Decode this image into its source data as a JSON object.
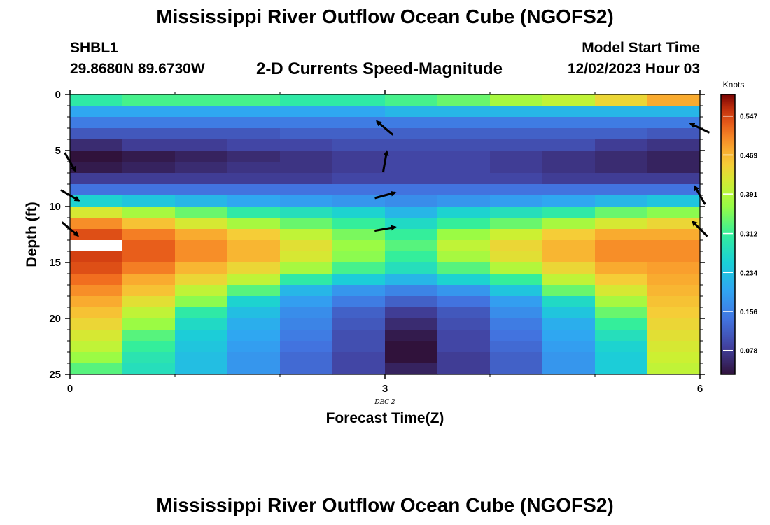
{
  "header": {
    "title": "Mississippi River Outflow Ocean Cube (NGOFS2)",
    "station_id": "SHBL1",
    "coords": "29.8680N  89.6730W",
    "subtitle": "2-D Currents Speed-Magnitude",
    "start_label": "Model Start Time",
    "start_value": "12/02/2023 Hour 03"
  },
  "footer": {
    "title": "Mississippi River Outflow Ocean Cube (NGOFS2)"
  },
  "chart_data": {
    "type": "heatmap",
    "xlabel": "Forecast Time(Z)",
    "ylabel": "Depth (ft)",
    "x_date_label": "DEC 2",
    "xlim": [
      0,
      6
    ],
    "ylim": [
      0,
      25
    ],
    "x_ticks": [
      0,
      3,
      6
    ],
    "y_ticks": [
      0,
      5,
      10,
      15,
      20,
      25
    ],
    "colorbar": {
      "unit": "Knots",
      "ticks": [
        0.078,
        0.156,
        0.234,
        0.312,
        0.391,
        0.469,
        0.547
      ],
      "range": [
        0.03,
        0.59
      ]
    },
    "x_centers": [
      0.25,
      0.75,
      1.25,
      1.75,
      2.25,
      2.75,
      3.25,
      3.75,
      4.25,
      4.75,
      5.25,
      5.75
    ],
    "depth_levels": [
      0.5,
      1.5,
      2.5,
      3.5,
      4.5,
      5.5,
      6.5,
      7.5,
      8.5,
      9.5,
      10.5,
      11.5,
      12.5,
      13.5,
      14.5,
      15.5,
      16.5,
      17.5,
      18.5,
      19.5,
      20.5,
      21.5,
      22.5,
      23.5,
      24.5
    ],
    "speed_knots": [
      [
        0.3,
        0.32,
        0.32,
        0.32,
        0.3,
        0.3,
        0.32,
        0.34,
        0.38,
        0.4,
        0.44,
        0.48
      ],
      [
        0.2,
        0.2,
        0.2,
        0.2,
        0.2,
        0.2,
        0.22,
        0.22,
        0.22,
        0.22,
        0.22,
        0.22
      ],
      [
        0.15,
        0.15,
        0.15,
        0.15,
        0.15,
        0.15,
        0.15,
        0.15,
        0.15,
        0.15,
        0.15,
        0.15
      ],
      [
        0.11,
        0.11,
        0.11,
        0.11,
        0.12,
        0.12,
        0.12,
        0.12,
        0.12,
        0.12,
        0.12,
        0.11
      ],
      [
        0.06,
        0.08,
        0.08,
        0.09,
        0.09,
        0.1,
        0.1,
        0.1,
        0.1,
        0.1,
        0.08,
        0.07
      ],
      [
        0.03,
        0.04,
        0.05,
        0.06,
        0.07,
        0.08,
        0.09,
        0.09,
        0.08,
        0.07,
        0.06,
        0.05
      ],
      [
        0.04,
        0.05,
        0.06,
        0.07,
        0.07,
        0.08,
        0.09,
        0.09,
        0.08,
        0.07,
        0.06,
        0.05
      ],
      [
        0.08,
        0.08,
        0.08,
        0.08,
        0.08,
        0.09,
        0.09,
        0.09,
        0.09,
        0.08,
        0.08,
        0.08
      ],
      [
        0.14,
        0.14,
        0.14,
        0.14,
        0.14,
        0.14,
        0.14,
        0.14,
        0.14,
        0.14,
        0.14,
        0.14
      ],
      [
        0.26,
        0.24,
        0.22,
        0.2,
        0.19,
        0.18,
        0.17,
        0.18,
        0.19,
        0.2,
        0.22,
        0.24
      ],
      [
        0.42,
        0.38,
        0.34,
        0.3,
        0.28,
        0.26,
        0.22,
        0.26,
        0.28,
        0.3,
        0.34,
        0.36
      ],
      [
        0.5,
        0.46,
        0.42,
        0.38,
        0.34,
        0.31,
        0.27,
        0.31,
        0.34,
        0.38,
        0.42,
        0.44
      ],
      [
        0.54,
        0.51,
        0.48,
        0.45,
        0.4,
        0.35,
        0.31,
        0.37,
        0.41,
        0.45,
        0.48,
        0.48
      ],
      [
        0.55,
        0.53,
        0.5,
        0.47,
        0.43,
        0.37,
        0.33,
        0.4,
        0.44,
        0.47,
        0.5,
        0.5
      ],
      [
        0.55,
        0.53,
        0.5,
        0.47,
        0.42,
        0.36,
        0.31,
        0.38,
        0.43,
        0.47,
        0.5,
        0.5
      ],
      [
        0.54,
        0.51,
        0.47,
        0.44,
        0.38,
        0.32,
        0.28,
        0.33,
        0.39,
        0.44,
        0.48,
        0.49
      ],
      [
        0.52,
        0.48,
        0.44,
        0.4,
        0.3,
        0.25,
        0.22,
        0.26,
        0.31,
        0.4,
        0.45,
        0.48
      ],
      [
        0.5,
        0.46,
        0.4,
        0.33,
        0.22,
        0.18,
        0.16,
        0.18,
        0.24,
        0.34,
        0.42,
        0.47
      ],
      [
        0.48,
        0.43,
        0.36,
        0.26,
        0.19,
        0.15,
        0.12,
        0.14,
        0.19,
        0.27,
        0.38,
        0.46
      ],
      [
        0.46,
        0.4,
        0.3,
        0.23,
        0.17,
        0.12,
        0.08,
        0.11,
        0.17,
        0.24,
        0.34,
        0.45
      ],
      [
        0.44,
        0.37,
        0.27,
        0.21,
        0.16,
        0.11,
        0.06,
        0.1,
        0.15,
        0.21,
        0.31,
        0.44
      ],
      [
        0.42,
        0.33,
        0.25,
        0.2,
        0.15,
        0.1,
        0.04,
        0.09,
        0.14,
        0.2,
        0.28,
        0.43
      ],
      [
        0.4,
        0.31,
        0.24,
        0.19,
        0.14,
        0.1,
        0.03,
        0.09,
        0.13,
        0.19,
        0.26,
        0.42
      ],
      [
        0.37,
        0.29,
        0.23,
        0.18,
        0.13,
        0.09,
        0.03,
        0.08,
        0.12,
        0.18,
        0.25,
        0.41
      ],
      [
        0.33,
        0.28,
        0.23,
        0.18,
        0.13,
        0.09,
        0.05,
        0.08,
        0.12,
        0.18,
        0.25,
        0.4
      ]
    ],
    "missing_cells": [
      [
        13,
        0
      ]
    ],
    "vectors": [
      {
        "time": 0,
        "depth": 6,
        "dir_deg": 150
      },
      {
        "time": 0,
        "depth": 9,
        "dir_deg": 120
      },
      {
        "time": 0,
        "depth": 12,
        "dir_deg": 130
      },
      {
        "time": 3,
        "depth": 3,
        "dir_deg": 310
      },
      {
        "time": 3,
        "depth": 6,
        "dir_deg": 10
      },
      {
        "time": 3,
        "depth": 9,
        "dir_deg": 75
      },
      {
        "time": 3,
        "depth": 12,
        "dir_deg": 80
      },
      {
        "time": 6,
        "depth": 3,
        "dir_deg": 295
      },
      {
        "time": 6,
        "depth": 9,
        "dir_deg": 330
      },
      {
        "time": 6,
        "depth": 12,
        "dir_deg": 315
      }
    ]
  }
}
